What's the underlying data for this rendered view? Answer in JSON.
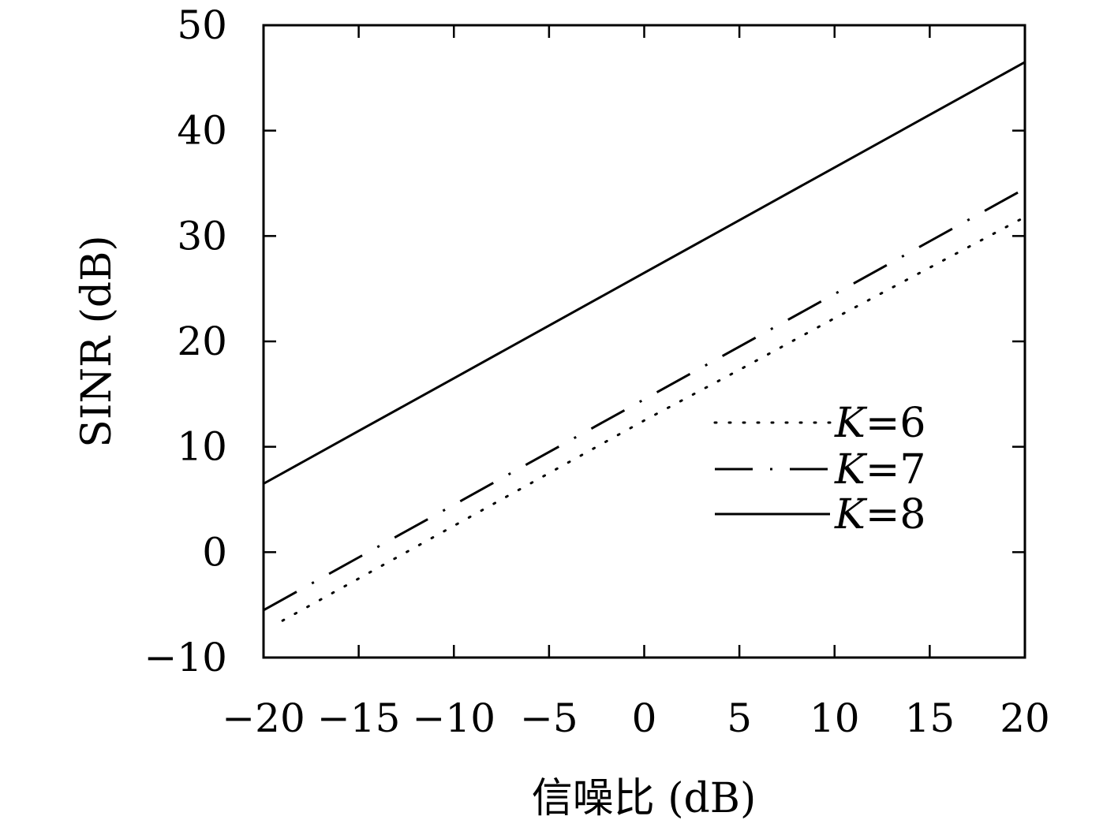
{
  "chart_data": {
    "type": "line",
    "title": "",
    "xlabel": "信噪比 (dB)",
    "ylabel": "SINR (dB)",
    "xlim": [
      -20,
      20
    ],
    "ylim": [
      -10,
      50
    ],
    "xticks": [
      -20,
      -15,
      -10,
      -5,
      0,
      5,
      10,
      15,
      20
    ],
    "yticks": [
      -10,
      0,
      10,
      20,
      30,
      40,
      50
    ],
    "xtick_labels": [
      "−20",
      "−15",
      "−10",
      "−5",
      "0",
      "5",
      "10",
      "15",
      "20"
    ],
    "ytick_labels": [
      "−10",
      "0",
      "10",
      "20",
      "30",
      "40",
      "50"
    ],
    "grid": false,
    "legend_position": "center-right",
    "series": [
      {
        "name": "K=6",
        "legend_var": "K",
        "legend_value": "=6",
        "style": "dotted",
        "color": "#000000",
        "x": [
          -19,
          -15,
          -10,
          -5,
          0,
          5,
          10,
          15,
          20
        ],
        "y": [
          -6.5,
          -2.5,
          2.5,
          7.5,
          12.5,
          17.3,
          22.2,
          27.0,
          31.8
        ]
      },
      {
        "name": "K=7",
        "legend_var": "K",
        "legend_value": "=7",
        "style": "dash-dot",
        "color": "#000000",
        "x": [
          -20,
          -15,
          -10,
          -5,
          0,
          5,
          10,
          15,
          20
        ],
        "y": [
          -5.5,
          -0.5,
          4.5,
          9.5,
          14.5,
          19.5,
          24.5,
          29.5,
          34.5
        ]
      },
      {
        "name": "K=8",
        "legend_var": "K",
        "legend_value": "=8",
        "style": "solid",
        "color": "#000000",
        "x": [
          -20,
          -15,
          -10,
          -5,
          0,
          5,
          10,
          15,
          20
        ],
        "y": [
          6.5,
          11.5,
          16.5,
          21.5,
          26.5,
          31.5,
          36.5,
          41.5,
          46.5
        ]
      }
    ]
  }
}
